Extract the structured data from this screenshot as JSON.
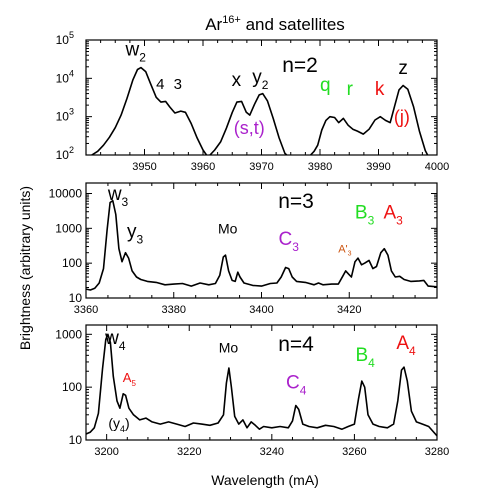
{
  "figure": {
    "title": "Ar",
    "title_sup": "16+",
    "title_rest": " and satellites",
    "ylabel": "Brightness (arbitrary units)",
    "xlabel": "Wavelength (mA)"
  },
  "colors": {
    "black": "#000000",
    "green": "#22dd22",
    "red": "#ee1111",
    "purple": "#aa22cc",
    "orange": "#cc5511"
  },
  "chart_data": [
    {
      "type": "line",
      "panel_label": "n=2",
      "xlim": [
        3940,
        4000
      ],
      "ylim": [
        100,
        100000
      ],
      "yscale": "log",
      "xticks": [
        3950,
        3960,
        3970,
        3980,
        3990,
        4000
      ],
      "xtick_labels": [
        "3950",
        "3960",
        "3970",
        "3980",
        "3990",
        "4000"
      ],
      "yticks": [
        100,
        1000,
        10000,
        100000
      ],
      "ytick_labels": [
        [
          "10",
          "2"
        ],
        [
          "10",
          "3"
        ],
        [
          "10",
          "4"
        ],
        [
          "10",
          "5"
        ]
      ],
      "segments": [
        [
          [
            3941,
            100
          ],
          [
            3942,
            125
          ],
          [
            3943,
            180
          ],
          [
            3944,
            290
          ],
          [
            3945,
            520
          ],
          [
            3946,
            1100
          ],
          [
            3947,
            3000
          ],
          [
            3948,
            9000
          ],
          [
            3948.8,
            17000
          ],
          [
            3949.4,
            19000
          ],
          [
            3950.2,
            15000
          ],
          [
            3951,
            7500
          ],
          [
            3952,
            3200
          ],
          [
            3952.8,
            2400
          ],
          [
            3953.6,
            2500
          ],
          [
            3954.3,
            1800
          ],
          [
            3955.2,
            1250
          ],
          [
            3956.2,
            1400
          ],
          [
            3957,
            1300
          ],
          [
            3958,
            650
          ],
          [
            3959,
            280
          ],
          [
            3960,
            135
          ],
          [
            3960.6,
            100
          ]
        ],
        [
          [
            3961.2,
            100
          ],
          [
            3962,
            135
          ],
          [
            3963,
            220
          ],
          [
            3964,
            500
          ],
          [
            3965,
            1300
          ],
          [
            3965.8,
            2400
          ],
          [
            3966.6,
            2500
          ],
          [
            3967.4,
            1300
          ],
          [
            3968,
            1100
          ],
          [
            3968.8,
            2100
          ],
          [
            3969.6,
            3700
          ],
          [
            3970.2,
            4000
          ],
          [
            3971,
            2600
          ],
          [
            3972,
            900
          ],
          [
            3973,
            280
          ],
          [
            3974,
            110
          ],
          [
            3974.3,
            100
          ]
        ],
        [
          [
            3978.4,
            100
          ],
          [
            3979,
            125
          ],
          [
            3979.6,
            180
          ],
          [
            3980.3,
            450
          ],
          [
            3981,
            800
          ],
          [
            3981.7,
            1000
          ],
          [
            3982.5,
            950
          ],
          [
            3983.2,
            700
          ],
          [
            3984,
            900
          ],
          [
            3984.8,
            600
          ],
          [
            3985.6,
            470
          ],
          [
            3986.4,
            420
          ],
          [
            3987.4,
            350
          ],
          [
            3988.4,
            470
          ],
          [
            3989.4,
            820
          ],
          [
            3990.3,
            1000
          ],
          [
            3991.2,
            800
          ],
          [
            3992,
            700
          ],
          [
            3992.8,
            2000
          ],
          [
            3993.5,
            5000
          ],
          [
            3994.2,
            6500
          ],
          [
            3995,
            5200
          ],
          [
            3996,
            1800
          ],
          [
            3997,
            420
          ],
          [
            3998,
            130
          ],
          [
            3998.4,
            100
          ]
        ]
      ],
      "annotations": [
        {
          "text": "w",
          "sub": "2",
          "x": 3948.5,
          "y": 40000,
          "color": "black",
          "size": 19
        },
        {
          "text": "4",
          "sub": "",
          "x": 3952.7,
          "y": 5200,
          "color": "black",
          "size": 15
        },
        {
          "text": "3",
          "sub": "",
          "x": 3955.7,
          "y": 5200,
          "color": "black",
          "size": 15
        },
        {
          "text": "x",
          "sub": "",
          "x": 3965.7,
          "y": 6300,
          "color": "black",
          "size": 19
        },
        {
          "text": "y",
          "sub": "2",
          "x": 3969.8,
          "y": 7500,
          "color": "black",
          "size": 19
        },
        {
          "text": "(s,t)",
          "sub": "",
          "x": 3967.9,
          "y": 350,
          "color": "purple",
          "size": 18
        },
        {
          "text": "q",
          "sub": "",
          "x": 3980.9,
          "y": 4700,
          "color": "green",
          "size": 19
        },
        {
          "text": "r",
          "sub": "",
          "x": 3985.1,
          "y": 3700,
          "color": "green",
          "size": 19
        },
        {
          "text": "k",
          "sub": "",
          "x": 3990.2,
          "y": 3700,
          "color": "red",
          "size": 19
        },
        {
          "text": "(j)",
          "sub": "",
          "x": 3994,
          "y": 680,
          "color": "red",
          "size": 18
        },
        {
          "text": "z",
          "sub": "",
          "x": 3994.2,
          "y": 13000,
          "color": "black",
          "size": 19
        }
      ]
    },
    {
      "type": "line",
      "panel_label": "n=3",
      "xlim": [
        3360,
        3440
      ],
      "ylim": [
        10,
        20000
      ],
      "yscale": "log",
      "xticks": [
        3360,
        3380,
        3400,
        3420
      ],
      "xtick_labels": [
        "3360",
        "3380",
        "3400",
        "3420"
      ],
      "yticks": [
        10,
        100,
        1000,
        10000
      ],
      "ytick_labels": [
        [
          "10",
          ""
        ],
        [
          "100",
          ""
        ],
        [
          "1000",
          ""
        ],
        [
          "10000",
          ""
        ]
      ],
      "segments": [
        [
          [
            3360,
            18
          ],
          [
            3361,
            17
          ],
          [
            3362,
            19
          ],
          [
            3363,
            27
          ],
          [
            3364,
            70
          ],
          [
            3364.8,
            900
          ],
          [
            3365.5,
            5500
          ],
          [
            3366.1,
            6200
          ],
          [
            3366.8,
            2500
          ],
          [
            3367.5,
            260
          ],
          [
            3368.2,
            110
          ],
          [
            3369,
            200
          ],
          [
            3369.7,
            140
          ],
          [
            3370.5,
            60
          ],
          [
            3371.5,
            40
          ],
          [
            3372.5,
            34
          ],
          [
            3374,
            30
          ],
          [
            3376,
            28
          ],
          [
            3378,
            24
          ],
          [
            3380,
            25
          ],
          [
            3382,
            26
          ],
          [
            3384,
            22
          ],
          [
            3386,
            27
          ],
          [
            3388,
            24
          ],
          [
            3389.5,
            26
          ],
          [
            3390.5,
            45
          ],
          [
            3391.3,
            150
          ],
          [
            3391.8,
            170
          ],
          [
            3392.5,
            60
          ],
          [
            3393.3,
            32
          ],
          [
            3394,
            30
          ],
          [
            3394.6,
            55
          ],
          [
            3395.1,
            40
          ],
          [
            3396,
            27
          ],
          [
            3398,
            23
          ],
          [
            3400,
            22
          ],
          [
            3402,
            26
          ],
          [
            3403.5,
            27
          ],
          [
            3404.5,
            40
          ],
          [
            3405.5,
            75
          ],
          [
            3406.2,
            70
          ],
          [
            3407,
            40
          ],
          [
            3408,
            30
          ],
          [
            3410,
            28
          ],
          [
            3412,
            24
          ],
          [
            3413,
            27
          ],
          [
            3414,
            24
          ],
          [
            3416,
            25
          ],
          [
            3417.5,
            25
          ],
          [
            3418.5,
            42
          ],
          [
            3419.2,
            60
          ],
          [
            3419.9,
            48
          ],
          [
            3420.5,
            40
          ],
          [
            3421.3,
            110
          ],
          [
            3422,
            140
          ],
          [
            3422.8,
            90
          ],
          [
            3423.5,
            100
          ],
          [
            3424.5,
            120
          ],
          [
            3425.4,
            70
          ],
          [
            3426.2,
            80
          ],
          [
            3427.2,
            200
          ],
          [
            3428,
            260
          ],
          [
            3428.8,
            170
          ],
          [
            3429.6,
            60
          ],
          [
            3430.5,
            40
          ],
          [
            3431.5,
            42
          ],
          [
            3432.5,
            34
          ],
          [
            3434,
            30
          ],
          [
            3436,
            31
          ],
          [
            3437,
            32
          ],
          [
            3438,
            22
          ],
          [
            3440,
            21
          ]
        ]
      ],
      "annotations": [
        {
          "text": "w",
          "sub": "3",
          "x": 3367.3,
          "y": 6500,
          "color": "black",
          "size": 19
        },
        {
          "text": "y",
          "sub": "3",
          "x": 3371.2,
          "y": 550,
          "color": "black",
          "size": 19
        },
        {
          "text": "Mo",
          "sub": "",
          "x": 3392.3,
          "y": 700,
          "color": "black",
          "size": 14
        },
        {
          "text": "C",
          "sub": "3",
          "x": 3406.2,
          "y": 330,
          "color": "purple",
          "size": 19
        },
        {
          "text": "A'",
          "sub": "3",
          "x": 3419,
          "y": 200,
          "color": "orange",
          "size": 11
        },
        {
          "text": "B",
          "sub": "3",
          "x": 3423.5,
          "y": 1900,
          "color": "green",
          "size": 19
        },
        {
          "text": "A",
          "sub": "3",
          "x": 3430,
          "y": 1900,
          "color": "red",
          "size": 19
        }
      ]
    },
    {
      "type": "line",
      "panel_label": "n=4",
      "xlim": [
        3195,
        3280
      ],
      "ylim": [
        10,
        1500
      ],
      "yscale": "log",
      "xticks": [
        3200,
        3220,
        3240,
        3260,
        3280
      ],
      "xtick_labels": [
        "3200",
        "3220",
        "3240",
        "3260",
        "3280"
      ],
      "yticks": [
        10,
        100,
        1000
      ],
      "ytick_labels": [
        [
          "10",
          ""
        ],
        [
          "100",
          ""
        ],
        [
          "1000",
          ""
        ]
      ],
      "segments": [
        [
          [
            3195,
            13
          ],
          [
            3196,
            14
          ],
          [
            3197,
            17
          ],
          [
            3198,
            32
          ],
          [
            3199,
            220
          ],
          [
            3199.8,
            800
          ],
          [
            3200.3,
            1000
          ],
          [
            3200.9,
            700
          ],
          [
            3201.6,
            160
          ],
          [
            3202.5,
            55
          ],
          [
            3203.2,
            40
          ],
          [
            3204,
            75
          ],
          [
            3204.6,
            70
          ],
          [
            3205.4,
            40
          ],
          [
            3206.5,
            30
          ],
          [
            3208,
            24
          ],
          [
            3209.5,
            26
          ],
          [
            3211,
            22
          ],
          [
            3213,
            20
          ],
          [
            3215,
            22
          ],
          [
            3217,
            20
          ],
          [
            3219,
            18
          ],
          [
            3221,
            21
          ],
          [
            3223,
            20
          ],
          [
            3225,
            19
          ],
          [
            3227,
            21
          ],
          [
            3228.3,
            30
          ],
          [
            3229,
            120
          ],
          [
            3229.6,
            230
          ],
          [
            3230.2,
            100
          ],
          [
            3231,
            28
          ],
          [
            3232,
            20
          ],
          [
            3233,
            24
          ],
          [
            3234,
            17
          ],
          [
            3235,
            22
          ],
          [
            3236,
            19
          ],
          [
            3237,
            16
          ],
          [
            3238,
            18
          ],
          [
            3240,
            17
          ],
          [
            3242,
            18
          ],
          [
            3244,
            17
          ],
          [
            3245,
            23
          ],
          [
            3245.8,
            45
          ],
          [
            3246.5,
            38
          ],
          [
            3247.5,
            20
          ],
          [
            3249,
            18
          ],
          [
            3251,
            17
          ],
          [
            3253,
            19
          ],
          [
            3255,
            18
          ],
          [
            3257,
            16
          ],
          [
            3258.5,
            18
          ],
          [
            3260,
            20
          ],
          [
            3261,
            60
          ],
          [
            3261.8,
            130
          ],
          [
            3262.5,
            100
          ],
          [
            3263.3,
            30
          ],
          [
            3264.5,
            20
          ],
          [
            3266,
            18
          ],
          [
            3268,
            17
          ],
          [
            3269.5,
            20
          ],
          [
            3270.5,
            55
          ],
          [
            3271.4,
            210
          ],
          [
            3272,
            240
          ],
          [
            3272.8,
            130
          ],
          [
            3273.8,
            35
          ],
          [
            3275,
            22
          ],
          [
            3276.5,
            20
          ],
          [
            3278,
            18
          ],
          [
            3280,
            12
          ]
        ]
      ],
      "annotations": [
        {
          "text": "w",
          "sub": "4",
          "x": 3202.1,
          "y": 650,
          "color": "black",
          "size": 19
        },
        {
          "text": "A",
          "sub": "5",
          "x": 3205.5,
          "y": 125,
          "color": "red",
          "size": 13
        },
        {
          "text": "(y",
          "sub": "4",
          "x": 3203,
          "y": 17,
          "color": "black",
          "size": 14
        },
        {
          "text": "Mo",
          "sub": "",
          "x": 3229.5,
          "y": 450,
          "color": "black",
          "size": 14
        },
        {
          "text": "C",
          "sub": "4",
          "x": 3245.9,
          "y": 95,
          "color": "purple",
          "size": 19
        },
        {
          "text": "B",
          "sub": "4",
          "x": 3262.6,
          "y": 310,
          "color": "green",
          "size": 19
        },
        {
          "text": "A",
          "sub": "4",
          "x": 3272.5,
          "y": 530,
          "color": "red",
          "size": 19
        }
      ]
    }
  ]
}
